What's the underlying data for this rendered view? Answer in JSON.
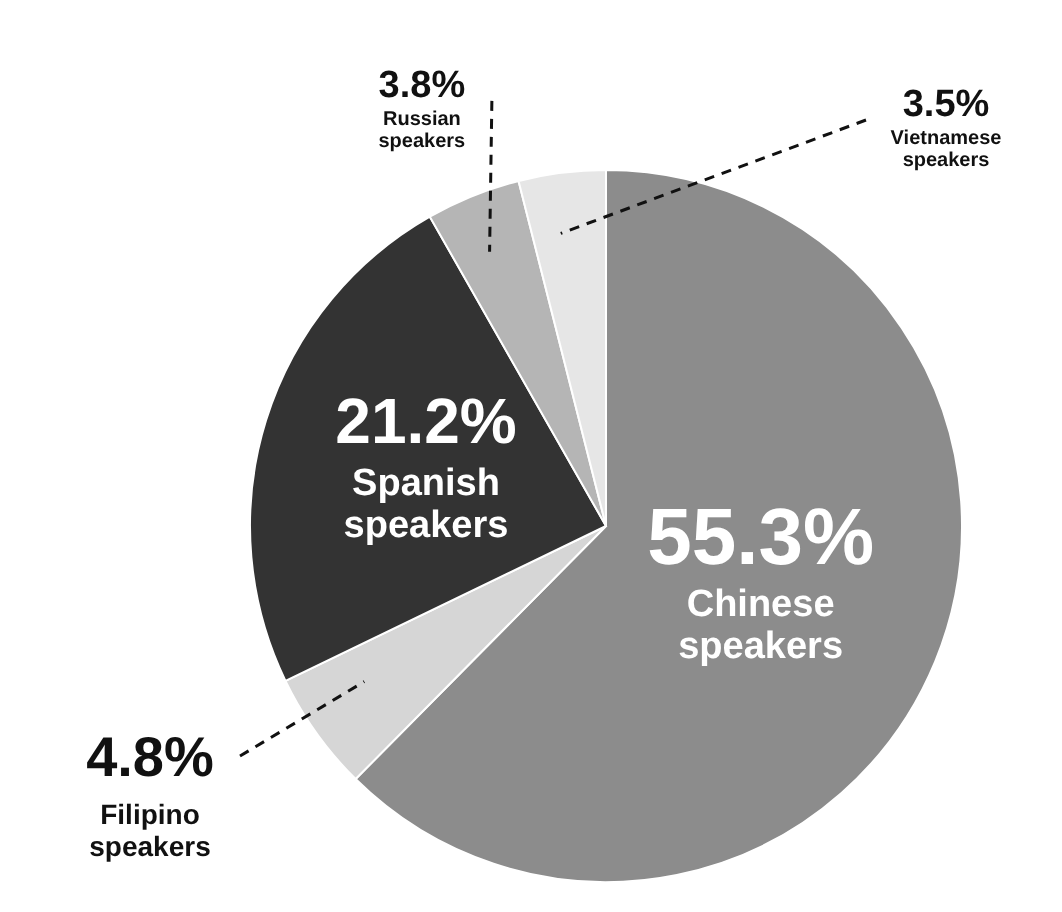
{
  "chart_data": {
    "type": "pie",
    "categories": [
      "Chinese speakers",
      "Filipino speakers",
      "Spanish speakers",
      "Russian speakers",
      "Vietnamese speakers"
    ],
    "values": [
      55.3,
      4.8,
      21.2,
      3.8,
      3.5
    ],
    "value_labels": [
      "55.3%",
      "4.8%",
      "21.2%",
      "3.8%",
      "3.5%"
    ],
    "colors": [
      "#8c8c8c",
      "#d6d6d6",
      "#333333",
      "#b5b5b5",
      "#e6e6e6"
    ],
    "legend": false
  }
}
